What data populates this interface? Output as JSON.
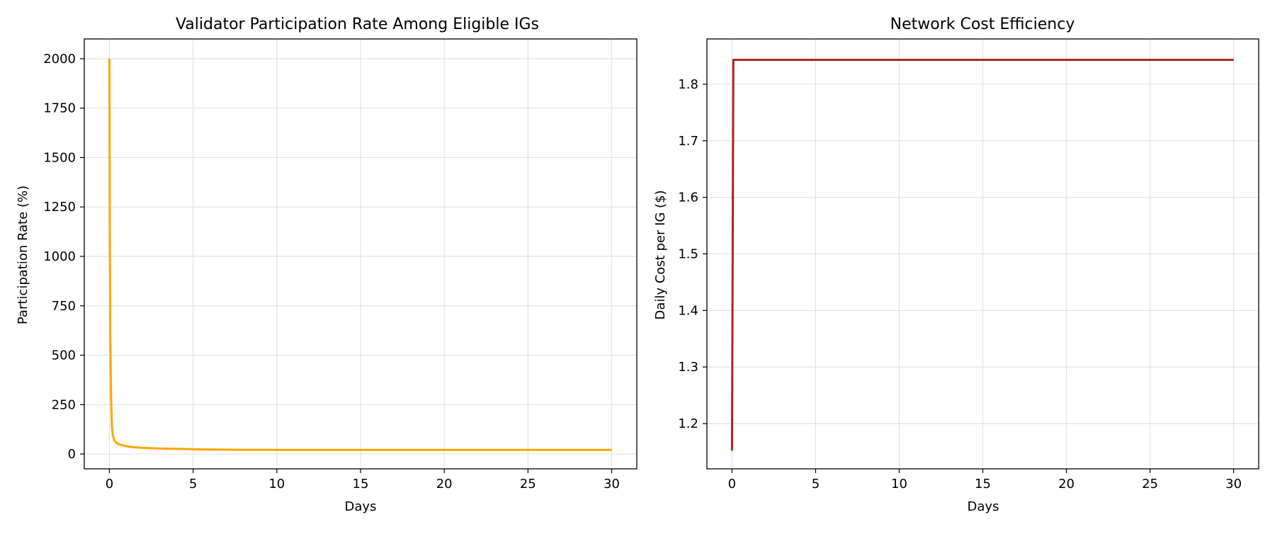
{
  "chart_data": [
    {
      "type": "line",
      "title": "Validator Participation Rate Among Eligible IGs",
      "xlabel": "Days",
      "ylabel": "Participation Rate (%)",
      "xlim": [
        -1.5,
        31.5
      ],
      "ylim": [
        -75,
        2100
      ],
      "xticks": [
        0,
        5,
        10,
        15,
        20,
        25,
        30
      ],
      "yticks": [
        0,
        250,
        500,
        750,
        1000,
        1250,
        1500,
        1750,
        2000
      ],
      "grid": true,
      "color": "#FFA500",
      "series": [
        {
          "x": [
            0,
            0.02,
            0.05,
            0.1,
            0.15,
            0.2,
            0.3,
            0.4,
            0.5,
            0.7,
            1,
            1.5,
            2,
            3,
            4,
            5,
            6,
            7,
            8,
            10,
            15,
            20,
            25,
            30
          ],
          "values": [
            2000,
            1200,
            600,
            280,
            140,
            95,
            68,
            58,
            52,
            46,
            40,
            34,
            31,
            28,
            26,
            24,
            23,
            22,
            21.5,
            21,
            21,
            21,
            21,
            21
          ]
        }
      ]
    },
    {
      "type": "line",
      "title": "Network Cost Efficiency",
      "xlabel": "Days",
      "ylabel": "Daily Cost per IG ($)",
      "xlim": [
        -1.5,
        31.5
      ],
      "ylim": [
        1.12,
        1.88
      ],
      "xticks": [
        0,
        5,
        10,
        15,
        20,
        25,
        30
      ],
      "yticks": [
        1.2,
        1.3,
        1.4,
        1.5,
        1.6,
        1.7,
        1.8
      ],
      "grid": true,
      "color": "#B22222",
      "series": [
        {
          "x": [
            0,
            0.08,
            1,
            5,
            10,
            15,
            20,
            25,
            30
          ],
          "values": [
            1.152,
            1.843,
            1.843,
            1.843,
            1.843,
            1.843,
            1.843,
            1.843,
            1.843
          ]
        }
      ]
    }
  ]
}
